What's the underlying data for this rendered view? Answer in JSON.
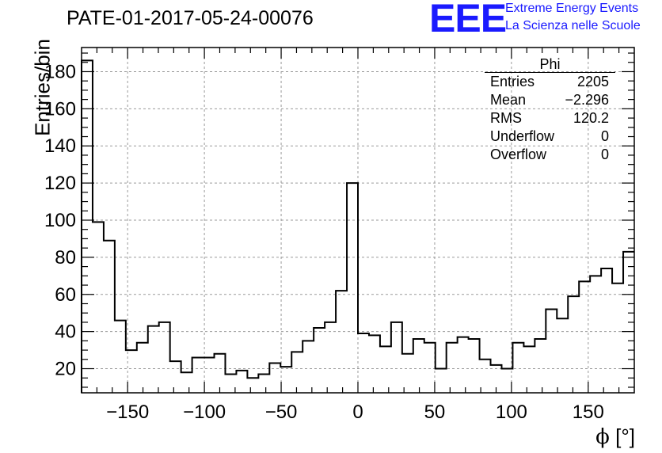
{
  "header": {
    "title": "PATE-01-2017-05-24-00076",
    "logo": "EEE",
    "org_line1": "Extreme Energy Events",
    "org_line2": "La Scienza nelle Scuole"
  },
  "stats_box": {
    "name": "Phi",
    "rows": [
      {
        "label": "Entries",
        "value": "2205"
      },
      {
        "label": "Mean",
        "value": "−2.296"
      },
      {
        "label": "RMS",
        "value": "120.2"
      },
      {
        "label": "Underflow",
        "value": "0"
      },
      {
        "label": "Overflow",
        "value": "0"
      }
    ]
  },
  "chart_data": {
    "type": "bar",
    "style": "step-histogram",
    "title": "PATE-01-2017-05-24-00076",
    "xlabel_symbol": "ϕ",
    "xlabel_unit": "[°]",
    "ylabel": "Entries/bin",
    "xlim": [
      -180,
      180
    ],
    "ylim": [
      7,
      193
    ],
    "grid": true,
    "bin_width": 7.2,
    "bin_edges_start": -180,
    "x_ticks": [
      -150,
      -100,
      -50,
      0,
      50,
      100,
      150
    ],
    "x_tick_labels": [
      "−150",
      "−100",
      "−50",
      "0",
      "50",
      "100",
      "150"
    ],
    "y_ticks": [
      20,
      40,
      60,
      80,
      100,
      120,
      140,
      160,
      180
    ],
    "y_tick_labels": [
      "20",
      "40",
      "60",
      "80",
      "100",
      "120",
      "140",
      "160",
      "180"
    ],
    "values": [
      186,
      99,
      89,
      46,
      30,
      34,
      43,
      45,
      24,
      18,
      26,
      26,
      28,
      17,
      19,
      15,
      17,
      23,
      21,
      29,
      35,
      42,
      45,
      62,
      120,
      39,
      38,
      32,
      45,
      28,
      36,
      34,
      20,
      34,
      37,
      36,
      25,
      22,
      20,
      34,
      32,
      36,
      52,
      47,
      59,
      67,
      70,
      74,
      66,
      83
    ]
  }
}
